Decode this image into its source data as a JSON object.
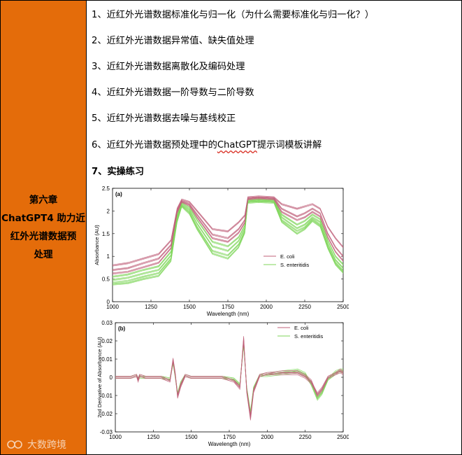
{
  "left_panel": {
    "chapter_lines": [
      "第六章",
      "ChatGPT4 助力近",
      "红外光谱数据预",
      "处理"
    ],
    "watermark_text": "大数跨境",
    "color": "#e46c0a"
  },
  "items": [
    {
      "text": "1、近红外光谱数据标准化与归一化（为什么需要标准化与归一化？）"
    },
    {
      "text": "2、近红外光谱数据异常值、缺失值处理"
    },
    {
      "text": "3、近红外光谱数据离散化及编码处理"
    },
    {
      "text": "4、近红外光谱数据一阶导数与二阶导数"
    },
    {
      "text": "5、近红外光谱数据去噪与基线校正"
    },
    {
      "text_before": "6、近红外光谱数据预处理中的",
      "text_link": "ChatGPT",
      "text_after": "提示词模板讲解"
    },
    {
      "text": "7、实操练习"
    }
  ],
  "chart_data": [
    {
      "type": "line",
      "panel_label": "(a)",
      "xlabel": "Wavelength (nm)",
      "ylabel": "Absorbance (AU)",
      "xlim": [
        1000,
        2500
      ],
      "ylim": [
        0,
        2.5
      ],
      "xticks": [
        1000,
        1250,
        1500,
        1750,
        2000,
        2250,
        2500
      ],
      "yticks": [
        0,
        0.5,
        1,
        1.5,
        2,
        2.5
      ],
      "legend": {
        "position": "right",
        "entries": [
          {
            "name": "E. coli",
            "color": "#c0607a"
          },
          {
            "name": "S. enteritidis",
            "color": "#7fd65a"
          }
        ]
      },
      "x": [
        1000,
        1100,
        1200,
        1300,
        1380,
        1420,
        1450,
        1500,
        1550,
        1650,
        1750,
        1820,
        1860,
        1880,
        1950,
        2050,
        2100,
        2200,
        2250,
        2300,
        2350,
        2400,
        2450,
        2500
      ],
      "series": [
        {
          "name": "E. coli",
          "values": [
            0.8,
            0.85,
            0.95,
            1.05,
            1.35,
            2.05,
            2.25,
            2.2,
            2.0,
            1.6,
            1.55,
            1.75,
            1.9,
            2.3,
            2.32,
            2.3,
            2.15,
            2.05,
            2.1,
            2.15,
            2.05,
            1.65,
            1.4,
            1.2
          ]
        },
        {
          "name": "E. coli",
          "values": [
            0.7,
            0.74,
            0.85,
            0.95,
            1.25,
            2.0,
            2.22,
            2.15,
            1.92,
            1.48,
            1.4,
            1.6,
            1.8,
            2.28,
            2.3,
            2.28,
            2.05,
            1.88,
            1.95,
            2.05,
            1.95,
            1.5,
            1.2,
            1.0
          ]
        },
        {
          "name": "E. coli",
          "values": [
            0.62,
            0.66,
            0.76,
            0.86,
            1.18,
            1.96,
            2.2,
            2.12,
            1.86,
            1.4,
            1.32,
            1.52,
            1.74,
            2.26,
            2.28,
            2.26,
            1.98,
            1.8,
            1.86,
            1.98,
            1.88,
            1.42,
            1.1,
            0.9
          ]
        },
        {
          "name": "S. enteritidis",
          "values": [
            0.55,
            0.6,
            0.7,
            0.78,
            1.1,
            1.9,
            2.18,
            2.08,
            1.8,
            1.32,
            1.22,
            1.42,
            1.68,
            2.24,
            2.26,
            2.24,
            1.92,
            1.7,
            1.78,
            1.92,
            1.82,
            1.35,
            1.0,
            0.82
          ]
        },
        {
          "name": "S. enteritidis",
          "values": [
            0.48,
            0.53,
            0.62,
            0.7,
            1.02,
            1.85,
            2.15,
            2.03,
            1.72,
            1.22,
            1.12,
            1.34,
            1.62,
            2.22,
            2.24,
            2.22,
            1.86,
            1.62,
            1.7,
            1.86,
            1.76,
            1.28,
            0.92,
            0.74
          ]
        },
        {
          "name": "S. enteritidis",
          "values": [
            0.42,
            0.46,
            0.55,
            0.63,
            0.95,
            1.8,
            2.12,
            1.98,
            1.65,
            1.12,
            1.02,
            1.26,
            1.56,
            2.2,
            2.22,
            2.2,
            1.8,
            1.56,
            1.64,
            1.82,
            1.7,
            1.22,
            0.86,
            0.68
          ]
        },
        {
          "name": "S. enteritidis",
          "values": [
            0.38,
            0.41,
            0.5,
            0.57,
            0.9,
            1.76,
            2.1,
            1.94,
            1.6,
            1.06,
            0.95,
            1.2,
            1.52,
            2.18,
            2.2,
            2.18,
            1.76,
            1.5,
            1.6,
            1.78,
            1.66,
            1.18,
            0.82,
            0.64
          ]
        }
      ]
    },
    {
      "type": "line",
      "panel_label": "(b)",
      "xlabel": "Wavelength (nm)",
      "ylabel": "2nd Derivative of Absorbance (AU)",
      "xlim": [
        1000,
        2500
      ],
      "ylim": [
        -0.03,
        0.03
      ],
      "xticks": [
        1000,
        1250,
        1500,
        1750,
        2000,
        2250,
        2500
      ],
      "yticks": [
        -0.03,
        -0.02,
        -0.01,
        0,
        0.01,
        0.02,
        0.03
      ],
      "legend": {
        "position": "top-right",
        "entries": [
          {
            "name": "E. coli",
            "color": "#c0607a"
          },
          {
            "name": "S. enteritidis",
            "color": "#7fd65a"
          }
        ]
      },
      "x": [
        1000,
        1100,
        1140,
        1150,
        1160,
        1200,
        1300,
        1360,
        1380,
        1395,
        1410,
        1430,
        1460,
        1500,
        1600,
        1700,
        1780,
        1820,
        1845,
        1865,
        1890,
        1910,
        1950,
        2000,
        2100,
        2200,
        2250,
        2290,
        2330,
        2360,
        2400,
        2450,
        2480,
        2500
      ],
      "series": [
        {
          "name": "E. coli",
          "values": [
            0,
            0,
            0.001,
            -0.002,
            0.001,
            0,
            0,
            -0.002,
            0.01,
            0.002,
            -0.011,
            -0.005,
            0.001,
            0,
            0,
            0,
            -0.002,
            -0.006,
            0.022,
            -0.008,
            -0.023,
            -0.008,
            0.001,
            0.002,
            0.003,
            0.003,
            0.001,
            -0.002,
            -0.01,
            -0.007,
            0.0,
            0.002,
            0.004,
            0.003
          ]
        },
        {
          "name": "E. coli",
          "values": [
            0,
            0,
            0.001,
            -0.001,
            0.001,
            0,
            0,
            -0.002,
            0.009,
            0.001,
            -0.01,
            -0.004,
            0.001,
            0,
            0,
            0,
            -0.002,
            -0.005,
            0.02,
            -0.007,
            -0.021,
            -0.007,
            0.001,
            0.002,
            0.002,
            0.002,
            0.0,
            -0.003,
            -0.009,
            -0.006,
            0.0,
            0.002,
            0.003,
            0.002
          ]
        },
        {
          "name": "S. enteritidis",
          "values": [
            0,
            0,
            0.001,
            -0.001,
            0.001,
            0,
            0,
            -0.001,
            0.008,
            0.001,
            -0.009,
            -0.004,
            0.001,
            0,
            0,
            0,
            -0.001,
            -0.004,
            0.019,
            -0.006,
            -0.02,
            -0.006,
            0.001,
            0.002,
            0.003,
            0.004,
            0.002,
            -0.004,
            -0.012,
            -0.009,
            -0.001,
            0.003,
            0.004,
            0.004
          ]
        },
        {
          "name": "S. enteritidis",
          "values": [
            0,
            0,
            0.001,
            -0.001,
            0.0,
            0,
            0,
            -0.001,
            0.008,
            0.0,
            -0.009,
            -0.003,
            0.001,
            0,
            0,
            0,
            -0.001,
            -0.004,
            0.018,
            -0.006,
            -0.019,
            -0.006,
            0.001,
            0.001,
            0.002,
            0.003,
            0.001,
            -0.003,
            -0.011,
            -0.008,
            -0.001,
            0.002,
            0.003,
            0.003
          ]
        }
      ]
    }
  ]
}
